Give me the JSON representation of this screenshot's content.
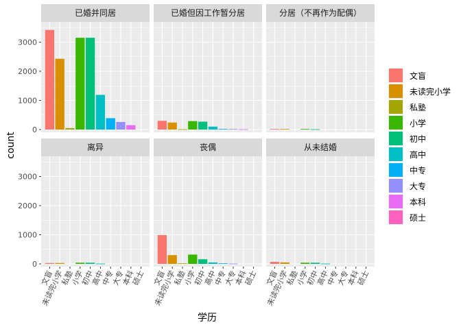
{
  "chart_data": {
    "type": "bar",
    "xlabel": "学历",
    "ylabel": "count",
    "ylim": [
      0,
      3600
    ],
    "yticks": [
      0,
      1000,
      2000,
      3000
    ],
    "grid": true,
    "legend_position": "right",
    "categories": [
      "文盲",
      "未读完小学",
      "私塾",
      "小学",
      "初中",
      "高中",
      "中专",
      "大专",
      "本科",
      "硕士"
    ],
    "colors": [
      "#F8766D",
      "#D89000",
      "#A3A500",
      "#39B600",
      "#00BF7D",
      "#00BFC4",
      "#00B0F6",
      "#9590FF",
      "#E76BF3",
      "#FF62BC"
    ],
    "facets": [
      {
        "label": "已婚并同居",
        "values": [
          3420,
          2430,
          50,
          3150,
          3150,
          1190,
          390,
          260,
          150,
          0
        ]
      },
      {
        "label": "已婚但因工作暂分居",
        "values": [
          300,
          240,
          10,
          290,
          270,
          100,
          20,
          20,
          10,
          0
        ]
      },
      {
        "label": "分居（不再作为配偶）",
        "values": [
          20,
          20,
          0,
          20,
          10,
          0,
          0,
          0,
          0,
          0
        ]
      },
      {
        "label": "离异",
        "values": [
          30,
          30,
          0,
          40,
          40,
          10,
          0,
          0,
          0,
          0
        ]
      },
      {
        "label": "丧偶",
        "values": [
          990,
          300,
          20,
          320,
          160,
          50,
          20,
          10,
          0,
          0
        ]
      },
      {
        "label": "从未结婚",
        "values": [
          70,
          50,
          0,
          40,
          40,
          10,
          0,
          0,
          0,
          0
        ]
      }
    ]
  }
}
